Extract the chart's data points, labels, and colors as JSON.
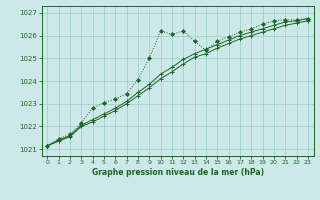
{
  "bg_color": "#cce8e8",
  "grid_color": "#99cccc",
  "line_color": "#1a6620",
  "title": "Graphe pression niveau de la mer (hPa)",
  "xlim": [
    -0.5,
    23.5
  ],
  "ylim": [
    1020.7,
    1027.3
  ],
  "xticks": [
    0,
    1,
    2,
    3,
    4,
    5,
    6,
    7,
    8,
    9,
    10,
    11,
    12,
    13,
    14,
    15,
    16,
    17,
    18,
    19,
    20,
    21,
    22,
    23
  ],
  "yticks": [
    1021,
    1022,
    1023,
    1024,
    1025,
    1026,
    1027
  ],
  "series1_x": [
    0,
    1,
    2,
    3,
    4,
    5,
    6,
    7,
    8,
    9,
    10,
    11,
    12,
    13,
    14,
    15,
    16,
    17,
    18,
    19,
    20,
    21,
    22,
    23
  ],
  "series1_y": [
    1021.15,
    1021.45,
    1021.65,
    1022.15,
    1022.8,
    1023.05,
    1023.2,
    1023.45,
    1024.05,
    1025.0,
    1026.2,
    1026.05,
    1026.2,
    1025.75,
    1025.35,
    1025.75,
    1025.95,
    1026.15,
    1026.3,
    1026.5,
    1026.65,
    1026.7,
    1026.7,
    1026.75
  ],
  "series2_x": [
    0,
    1,
    2,
    3,
    4,
    5,
    6,
    7,
    8,
    9,
    10,
    11,
    12,
    13,
    14,
    15,
    16,
    17,
    18,
    19,
    20,
    21,
    22,
    23
  ],
  "series2_y": [
    1021.15,
    1021.35,
    1021.55,
    1022.0,
    1022.2,
    1022.45,
    1022.7,
    1023.0,
    1023.35,
    1023.7,
    1024.1,
    1024.4,
    1024.75,
    1025.05,
    1025.2,
    1025.45,
    1025.65,
    1025.85,
    1026.0,
    1026.15,
    1026.3,
    1026.45,
    1026.55,
    1026.65
  ],
  "series3_x": [
    0,
    1,
    2,
    3,
    4,
    5,
    6,
    7,
    8,
    9,
    10,
    11,
    12,
    13,
    14,
    15,
    16,
    17,
    18,
    19,
    20,
    21,
    22,
    23
  ],
  "series3_y": [
    1021.15,
    1021.4,
    1021.6,
    1022.05,
    1022.3,
    1022.55,
    1022.8,
    1023.1,
    1023.5,
    1023.85,
    1024.3,
    1024.6,
    1024.95,
    1025.2,
    1025.4,
    1025.6,
    1025.8,
    1026.0,
    1026.15,
    1026.3,
    1026.45,
    1026.6,
    1026.65,
    1026.75
  ]
}
